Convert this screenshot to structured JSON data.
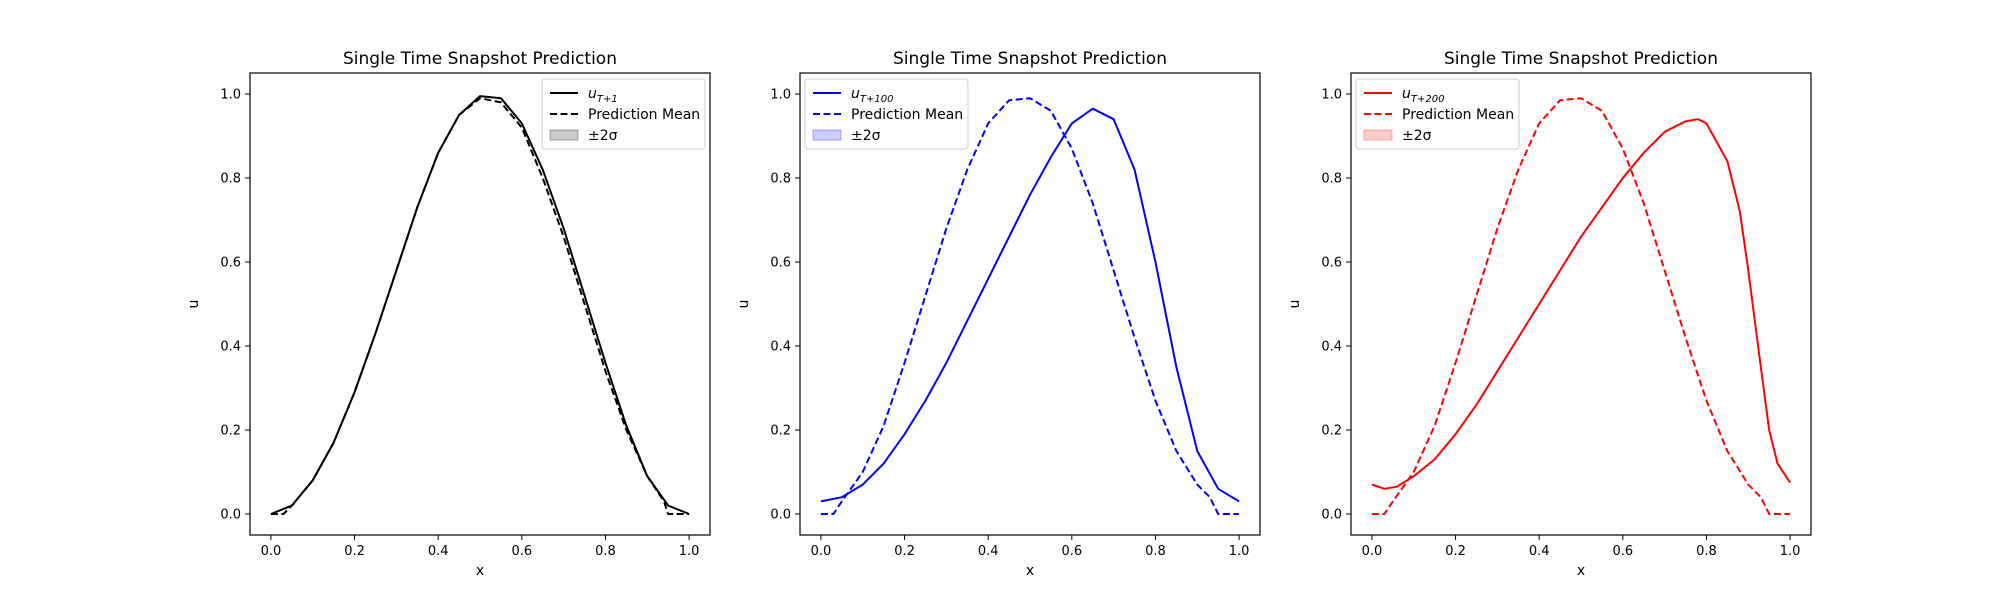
{
  "chart_data": [
    {
      "type": "line",
      "title": "Single Time Snapshot Prediction",
      "xlabel": "x",
      "ylabel": "u",
      "xlim": [
        -0.05,
        1.05
      ],
      "ylim": [
        -0.05,
        1.05
      ],
      "xticks": [
        "0.0",
        "0.2",
        "0.4",
        "0.6",
        "0.8",
        "1.0"
      ],
      "yticks": [
        "0.0",
        "0.2",
        "0.4",
        "0.6",
        "0.8",
        "1.0"
      ],
      "color": "#000000",
      "legend_position": "top-right",
      "legend": {
        "true": "u_{T+1}",
        "mean": "Prediction Mean",
        "band": "±2σ"
      },
      "series": [
        {
          "name": "u_{T+1}",
          "style": "solid",
          "x": [
            0.0,
            0.05,
            0.1,
            0.15,
            0.2,
            0.25,
            0.3,
            0.35,
            0.4,
            0.45,
            0.5,
            0.55,
            0.6,
            0.65,
            0.7,
            0.75,
            0.8,
            0.85,
            0.9,
            0.95,
            1.0
          ],
          "y": [
            0.0,
            0.02,
            0.08,
            0.17,
            0.29,
            0.43,
            0.58,
            0.73,
            0.86,
            0.95,
            0.995,
            0.99,
            0.93,
            0.82,
            0.68,
            0.52,
            0.36,
            0.21,
            0.09,
            0.02,
            0.0
          ]
        },
        {
          "name": "Prediction Mean",
          "style": "dashed",
          "x": [
            0.0,
            0.03,
            0.05,
            0.1,
            0.15,
            0.2,
            0.25,
            0.3,
            0.35,
            0.4,
            0.45,
            0.5,
            0.55,
            0.6,
            0.65,
            0.7,
            0.75,
            0.8,
            0.85,
            0.9,
            0.94,
            0.95,
            0.97,
            1.0
          ],
          "y": [
            0.0,
            0.0,
            0.02,
            0.08,
            0.17,
            0.29,
            0.43,
            0.58,
            0.73,
            0.86,
            0.95,
            0.99,
            0.98,
            0.92,
            0.8,
            0.66,
            0.5,
            0.34,
            0.2,
            0.09,
            0.03,
            0.0,
            0.0,
            0.0
          ]
        }
      ]
    },
    {
      "type": "line",
      "title": "Single Time Snapshot Prediction",
      "xlabel": "x",
      "ylabel": "u",
      "xlim": [
        -0.05,
        1.05
      ],
      "ylim": [
        -0.05,
        1.05
      ],
      "xticks": [
        "0.0",
        "0.2",
        "0.4",
        "0.6",
        "0.8",
        "1.0"
      ],
      "yticks": [
        "0.0",
        "0.2",
        "0.4",
        "0.6",
        "0.8",
        "1.0"
      ],
      "color": "#0000ff",
      "legend_position": "top-left",
      "legend": {
        "true": "u_{T+100}",
        "mean": "Prediction Mean",
        "band": "±2σ"
      },
      "series": [
        {
          "name": "u_{T+100}",
          "style": "solid",
          "x": [
            0.0,
            0.05,
            0.1,
            0.15,
            0.2,
            0.25,
            0.3,
            0.35,
            0.4,
            0.45,
            0.5,
            0.55,
            0.6,
            0.65,
            0.7,
            0.75,
            0.8,
            0.85,
            0.9,
            0.95,
            1.0
          ],
          "y": [
            0.03,
            0.04,
            0.07,
            0.12,
            0.19,
            0.27,
            0.36,
            0.46,
            0.56,
            0.66,
            0.76,
            0.85,
            0.93,
            0.965,
            0.94,
            0.82,
            0.6,
            0.35,
            0.15,
            0.06,
            0.03
          ]
        },
        {
          "name": "Prediction Mean",
          "style": "dashed",
          "x": [
            0.0,
            0.03,
            0.05,
            0.1,
            0.15,
            0.2,
            0.25,
            0.3,
            0.35,
            0.4,
            0.45,
            0.5,
            0.55,
            0.6,
            0.65,
            0.7,
            0.75,
            0.8,
            0.85,
            0.9,
            0.93,
            0.95,
            0.97,
            1.0
          ],
          "y": [
            0.0,
            0.0,
            0.03,
            0.1,
            0.21,
            0.36,
            0.52,
            0.68,
            0.82,
            0.93,
            0.985,
            0.99,
            0.96,
            0.87,
            0.74,
            0.58,
            0.42,
            0.27,
            0.15,
            0.07,
            0.04,
            0.0,
            0.0,
            0.0
          ]
        }
      ]
    },
    {
      "type": "line",
      "title": "Single Time Snapshot Prediction",
      "xlabel": "x",
      "ylabel": "u",
      "xlim": [
        -0.05,
        1.05
      ],
      "ylim": [
        -0.05,
        1.05
      ],
      "xticks": [
        "0.0",
        "0.2",
        "0.4",
        "0.6",
        "0.8",
        "1.0"
      ],
      "yticks": [
        "0.0",
        "0.2",
        "0.4",
        "0.6",
        "0.8",
        "1.0"
      ],
      "color": "#ff0000",
      "legend_position": "top-left",
      "legend": {
        "true": "u_{T+200}",
        "mean": "Prediction Mean",
        "band": "±2σ"
      },
      "series": [
        {
          "name": "u_{T+200}",
          "style": "solid",
          "x": [
            0.0,
            0.03,
            0.06,
            0.1,
            0.15,
            0.2,
            0.25,
            0.3,
            0.35,
            0.4,
            0.45,
            0.5,
            0.55,
            0.6,
            0.65,
            0.7,
            0.75,
            0.78,
            0.8,
            0.85,
            0.88,
            0.9,
            0.93,
            0.95,
            0.97,
            1.0
          ],
          "y": [
            0.07,
            0.06,
            0.065,
            0.09,
            0.13,
            0.19,
            0.26,
            0.34,
            0.42,
            0.5,
            0.58,
            0.66,
            0.73,
            0.8,
            0.86,
            0.91,
            0.935,
            0.94,
            0.93,
            0.84,
            0.72,
            0.58,
            0.35,
            0.2,
            0.12,
            0.075
          ]
        },
        {
          "name": "Prediction Mean",
          "style": "dashed",
          "x": [
            0.0,
            0.03,
            0.05,
            0.1,
            0.15,
            0.2,
            0.25,
            0.3,
            0.35,
            0.4,
            0.45,
            0.5,
            0.55,
            0.6,
            0.65,
            0.7,
            0.75,
            0.8,
            0.85,
            0.9,
            0.93,
            0.95,
            0.97,
            1.0
          ],
          "y": [
            0.0,
            0.0,
            0.03,
            0.1,
            0.21,
            0.36,
            0.52,
            0.68,
            0.82,
            0.93,
            0.985,
            0.99,
            0.96,
            0.87,
            0.74,
            0.58,
            0.42,
            0.27,
            0.15,
            0.07,
            0.04,
            0.0,
            0.0,
            0.0
          ]
        }
      ]
    }
  ]
}
